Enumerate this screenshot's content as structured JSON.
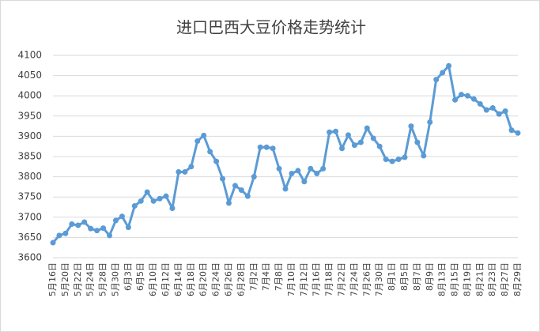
{
  "chart_data": {
    "type": "line",
    "title": "进口巴西大豆价格走势统计",
    "categories": [
      "5月16日",
      null,
      "5月20日",
      null,
      "5月22日",
      null,
      "5月24日",
      null,
      "5月28日",
      null,
      "5月30日",
      null,
      "6月3日",
      null,
      "6月5日",
      null,
      "6月10日",
      null,
      "6月12日",
      null,
      "6月14日",
      null,
      "6月18日",
      null,
      "6月20日",
      null,
      "6月24日",
      null,
      "6月26日",
      null,
      "6月28日",
      null,
      "7月2日",
      null,
      "7月4日",
      null,
      "7月8日",
      null,
      "7月10日",
      null,
      "7月12日",
      null,
      "7月16日",
      null,
      "7月18日",
      null,
      "7月22日",
      null,
      "7月24日",
      null,
      "7月26日",
      null,
      "7月30日",
      null,
      "8月1日",
      null,
      "8月5日",
      null,
      "8月7日",
      null,
      "8月9日",
      null,
      "8月13日",
      null,
      "8月15日",
      null,
      "8月19日",
      null,
      "8月21日",
      null,
      "8月23日",
      null,
      "8月27日",
      null,
      "8月29日"
    ],
    "series": [
      {
        "name": "进口巴西大豆价格",
        "color": "#5b9bd5",
        "values": [
          3637,
          3655,
          3660,
          3683,
          3680,
          3688,
          3672,
          3667,
          3673,
          3655,
          3692,
          3702,
          3675,
          3728,
          3740,
          3762,
          3740,
          3746,
          3752,
          3722,
          3812,
          3812,
          3825,
          3888,
          3902,
          3862,
          3838,
          3795,
          3735,
          3778,
          3767,
          3752,
          3800,
          3873,
          3873,
          3870,
          3820,
          3770,
          3808,
          3815,
          3788,
          3820,
          3808,
          3820,
          3910,
          3912,
          3870,
          3903,
          3878,
          3885,
          3920,
          3895,
          3875,
          3843,
          3838,
          3843,
          3848,
          3925,
          3885,
          3852,
          3935,
          4040,
          4057,
          4074,
          3990,
          4003,
          4000,
          3992,
          3980,
          3965,
          3970,
          3955,
          3962,
          3915,
          3908
        ]
      }
    ],
    "ylim": [
      3600,
      4100
    ],
    "yticks": [
      3600,
      3650,
      3700,
      3750,
      3800,
      3850,
      3900,
      3950,
      4000,
      4050,
      4100
    ],
    "grid": true
  }
}
